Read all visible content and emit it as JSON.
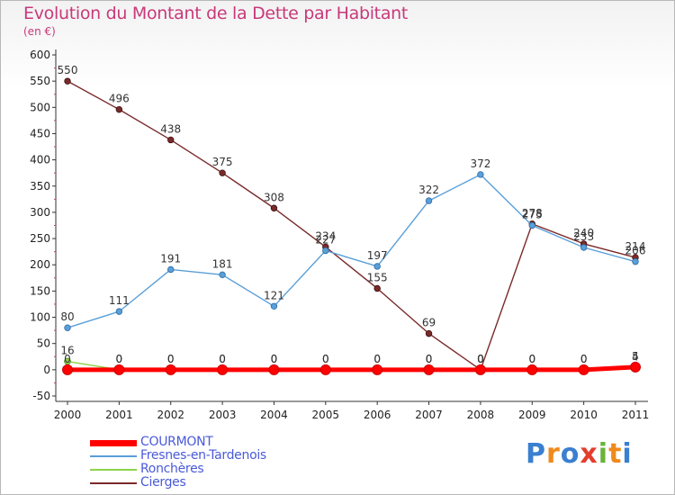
{
  "header": {
    "title": "Evolution du Montant de la Dette par Habitant",
    "unit": "(en €)"
  },
  "chart_data": {
    "type": "line",
    "title": "Evolution du Montant de la Dette par Habitant",
    "subtitle": "(en €)",
    "x": [
      "2000",
      "2001",
      "2002",
      "2003",
      "2004",
      "2005",
      "2006",
      "2007",
      "2008",
      "2009",
      "2010",
      "2011"
    ],
    "ylim": [
      -50,
      600
    ],
    "yticks": [
      "-50",
      "0",
      "50",
      "100",
      "150",
      "200",
      "250",
      "300",
      "350",
      "400",
      "450",
      "500",
      "550",
      "600"
    ],
    "grid": false,
    "legend_position": "bottom-left",
    "series": [
      {
        "name": "COURMONT",
        "color": "#ff0000",
        "values": [
          0,
          0,
          0,
          0,
          0,
          0,
          0,
          0,
          0,
          0,
          0,
          5
        ],
        "labels": [
          "0",
          "0",
          "0",
          "0",
          "0",
          "0",
          "0",
          "0",
          "0",
          "0",
          "0",
          "5"
        ]
      },
      {
        "name": "Fresnes-en-Tardenois",
        "color": "#5a9fd8",
        "values": [
          80,
          111,
          191,
          181,
          121,
          227,
          197,
          322,
          372,
          275,
          233,
          206
        ],
        "labels": [
          "80",
          "111",
          "191",
          "181",
          "121",
          "227",
          "197",
          "322",
          "372",
          "275",
          "233",
          "206"
        ]
      },
      {
        "name": "Ronchères",
        "color": "#8ed34a",
        "values": [
          16,
          0,
          0,
          0,
          0,
          0,
          0,
          0,
          0,
          0,
          0,
          4
        ],
        "labels": [
          "16",
          "0",
          "0",
          "0",
          "0",
          "0",
          "0",
          "0",
          "0",
          "0",
          "0",
          "4"
        ]
      },
      {
        "name": "Cierges",
        "color": "#7a2a2a",
        "values": [
          550,
          496,
          438,
          375,
          308,
          234,
          155,
          69,
          0,
          278,
          240,
          214
        ],
        "labels": [
          "550",
          "496",
          "438",
          "375",
          "308",
          "234",
          "155",
          "69",
          "0",
          "278",
          "240",
          "214"
        ]
      }
    ]
  },
  "branding": {
    "logo_text": "Proxiti",
    "logo_letters": [
      {
        "ch": "P",
        "color": "#3a7fd0"
      },
      {
        "ch": "r",
        "color": "#f08a1c"
      },
      {
        "ch": "o",
        "color": "#3a7fd0"
      },
      {
        "ch": "x",
        "color": "#e33d2c"
      },
      {
        "ch": "i",
        "color": "#6ab33a"
      },
      {
        "ch": "t",
        "color": "#f08a1c"
      },
      {
        "ch": "i",
        "color": "#3a7fd0"
      }
    ]
  }
}
